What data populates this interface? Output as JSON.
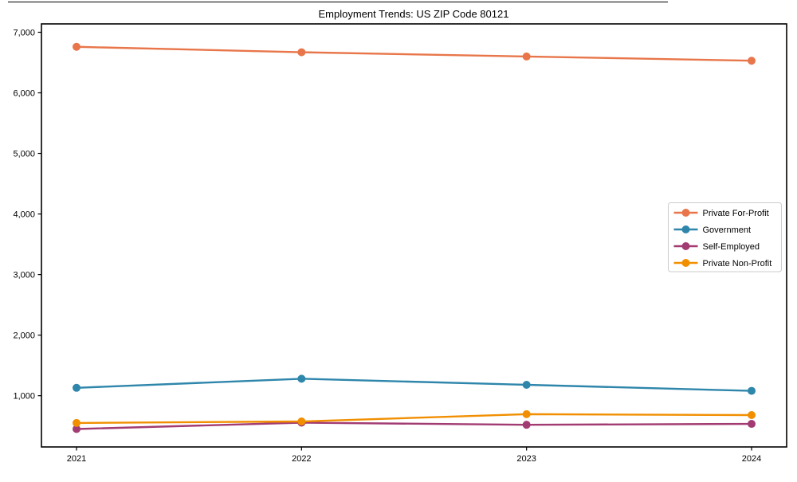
{
  "chart_data": {
    "type": "line",
    "title": "Employment Trends: US ZIP Code 80121",
    "xlabel": "",
    "ylabel": "",
    "categories": [
      "2021",
      "2022",
      "2023",
      "2024"
    ],
    "series": [
      {
        "name": "Private For-Profit",
        "color": "#E8764A",
        "values": [
          6760,
          6670,
          6600,
          6530
        ]
      },
      {
        "name": "Government",
        "color": "#2E86AB",
        "values": [
          1130,
          1280,
          1180,
          1080
        ]
      },
      {
        "name": "Self-Employed",
        "color": "#A23B72",
        "values": [
          450,
          555,
          520,
          535
        ]
      },
      {
        "name": "Private Non-Profit",
        "color": "#F18F01",
        "values": [
          550,
          575,
          695,
          680
        ]
      }
    ],
    "yticks": [
      1000,
      2000,
      3000,
      4000,
      5000,
      6000,
      7000
    ],
    "ytick_labels": [
      "1,000",
      "2,000",
      "3,000",
      "4,000",
      "5,000",
      "6,000",
      "7,000"
    ],
    "ylim": [
      154,
      7138
    ],
    "grid": false,
    "legend_position": "center right",
    "marker": "circle",
    "colors": {
      "axis": "#000000",
      "text": "#000000",
      "legend_border": "#cccccc",
      "background": "#ffffff"
    }
  }
}
